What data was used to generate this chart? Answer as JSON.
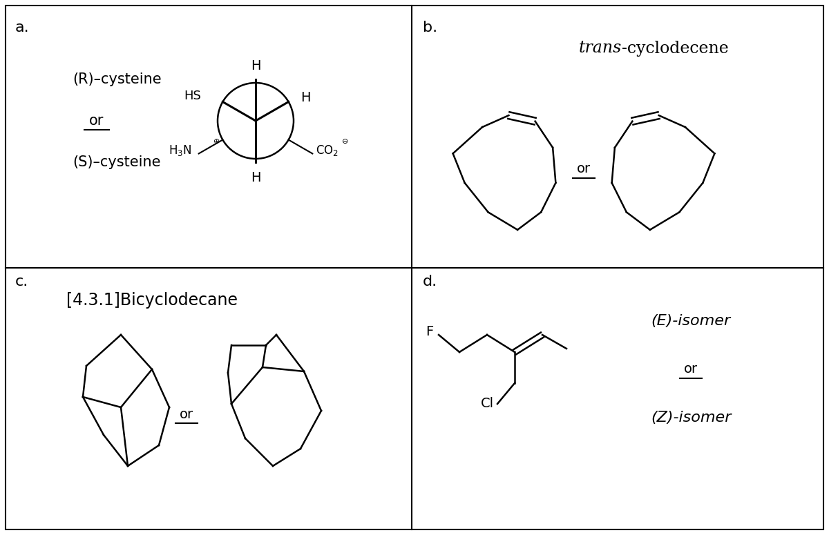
{
  "bg_color": "#ffffff",
  "line_color": "#000000",
  "panel_a_label": "a.",
  "panel_b_label": "b.",
  "panel_c_label": "c.",
  "panel_d_label": "d.",
  "panel_a_text1": "(R)–cysteine",
  "panel_a_text2": "or",
  "panel_a_text3": "(S)–cysteine",
  "panel_b_title_italic": "trans",
  "panel_b_title_normal": "-cyclodecene",
  "panel_b_or": "or",
  "panel_c_title": "[4.3.1]Bicyclodecane",
  "panel_c_or": "or",
  "panel_d_text1": "(E)-isomer",
  "panel_d_text2": "or",
  "panel_d_text3": "(Z)-isomer",
  "label_fontsize": 16,
  "title_fontsize": 15,
  "or_fontsize": 14,
  "chem_label_fontsize": 12
}
